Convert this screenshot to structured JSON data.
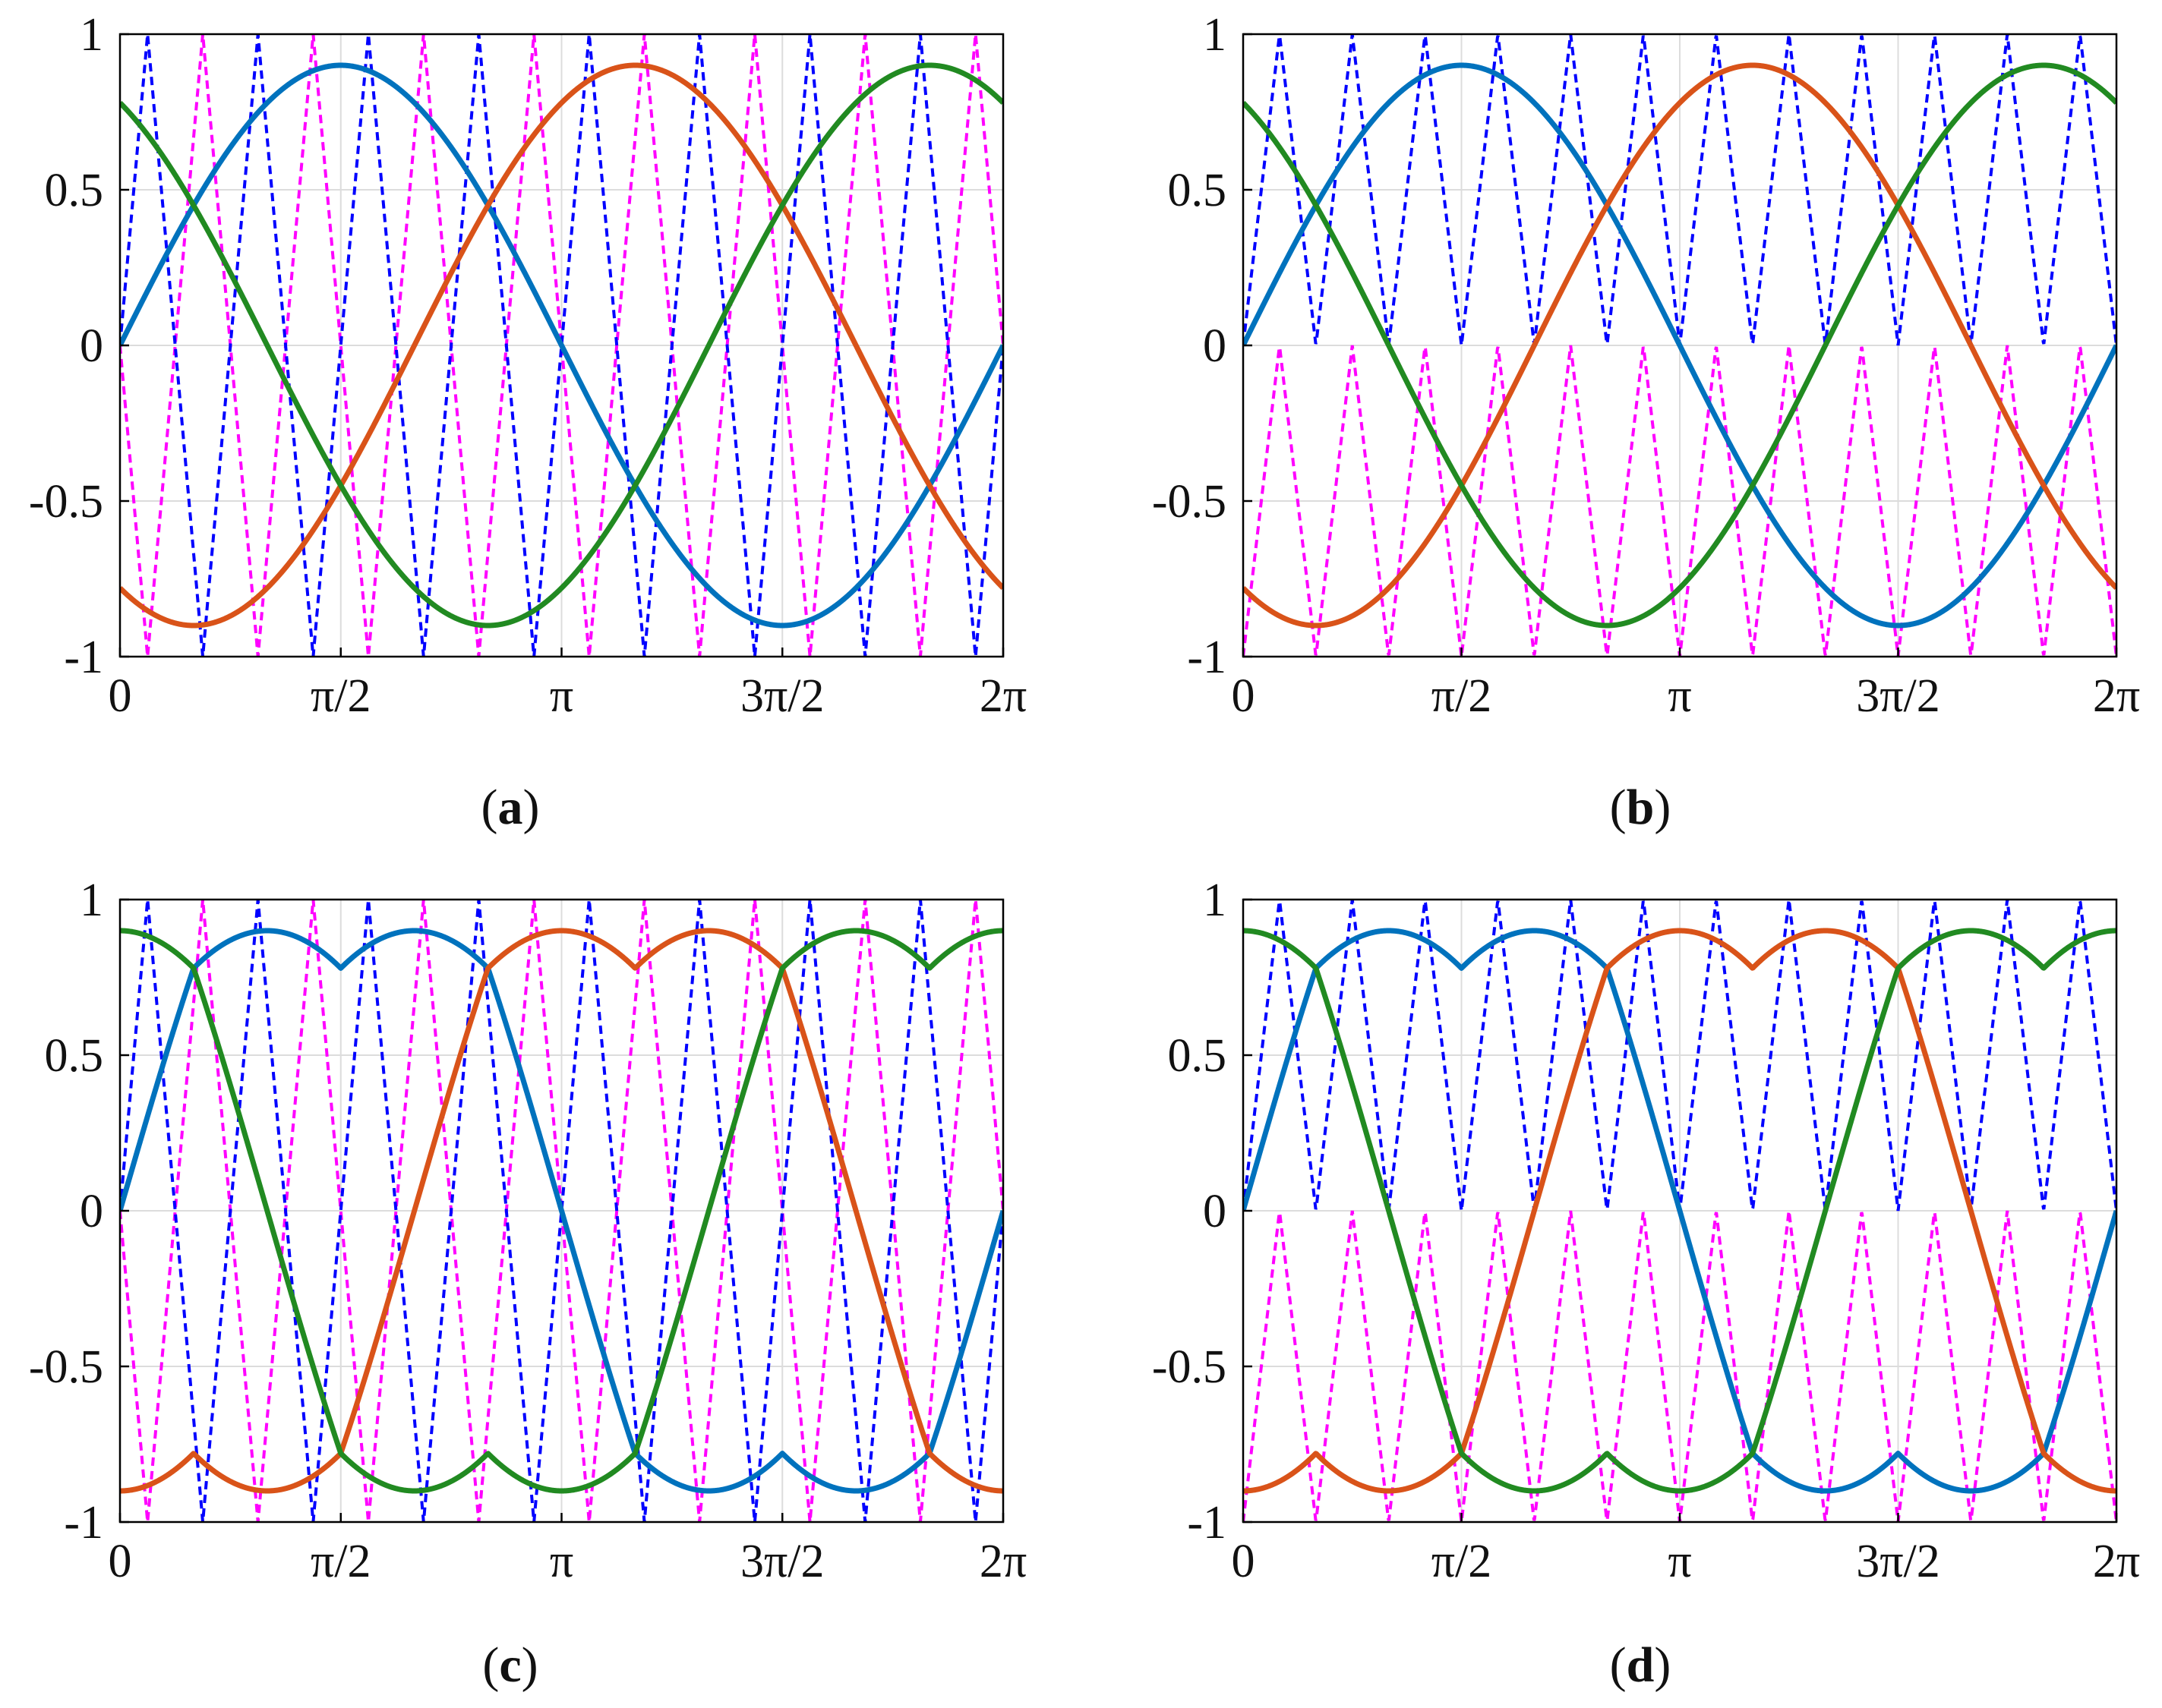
{
  "figure": {
    "x_ticks": [
      {
        "value": 0,
        "label": "0"
      },
      {
        "value": 1.5707963,
        "label": "π/2"
      },
      {
        "value": 3.1415927,
        "label": "π"
      },
      {
        "value": 4.712389,
        "label": "3π/2"
      },
      {
        "value": 6.2831853,
        "label": "2π"
      }
    ],
    "y_ticks": [
      {
        "value": 1,
        "label": "1"
      },
      {
        "value": 0.5,
        "label": "0.5"
      },
      {
        "value": 0,
        "label": "0"
      },
      {
        "value": -0.5,
        "label": "-0.5"
      },
      {
        "value": -1,
        "label": "-1"
      }
    ],
    "colors": {
      "phase_a": "#0072BD",
      "phase_b": "#D95319",
      "phase_c": "#218A21",
      "carrier_upper": "#0000FF",
      "carrier_lower": "#FF00FF",
      "grid": "#DCDCDC",
      "axes": "#000000"
    }
  },
  "chart_data": [
    {
      "type": "line",
      "panel": "a",
      "caption_open": "(",
      "caption_letter": "a",
      "caption_close": ")",
      "xlim": [
        0,
        6.2831853
      ],
      "ylim": [
        -1,
        1
      ],
      "grid": true,
      "modulation": "sinusoidal",
      "carrier": "phase-disposition",
      "amplitude": 0.9,
      "carrier_periods": 8,
      "series": [
        {
          "key": "phase_a",
          "style": "solid",
          "phase_shift_deg": 0
        },
        {
          "key": "phase_b",
          "style": "solid",
          "phase_shift_deg": -120
        },
        {
          "key": "phase_c",
          "style": "solid",
          "phase_shift_deg": 120
        },
        {
          "key": "carrier_upper",
          "style": "dashed"
        },
        {
          "key": "carrier_lower",
          "style": "dashed"
        }
      ]
    },
    {
      "type": "line",
      "panel": "b",
      "caption_open": "(",
      "caption_letter": "b",
      "caption_close": ")",
      "xlim": [
        0,
        6.2831853
      ],
      "ylim": [
        -1,
        1
      ],
      "grid": true,
      "modulation": "sinusoidal",
      "carrier": "level-shifted",
      "amplitude": 0.9,
      "carrier_periods": 12,
      "series": [
        {
          "key": "phase_a",
          "style": "solid",
          "phase_shift_deg": 0
        },
        {
          "key": "phase_b",
          "style": "solid",
          "phase_shift_deg": -120
        },
        {
          "key": "phase_c",
          "style": "solid",
          "phase_shift_deg": 120
        },
        {
          "key": "carrier_upper",
          "style": "dashed"
        },
        {
          "key": "carrier_lower",
          "style": "dashed"
        }
      ]
    },
    {
      "type": "line",
      "panel": "c",
      "caption_open": "(",
      "caption_letter": "c",
      "caption_close": ")",
      "xlim": [
        0,
        6.2831853
      ],
      "ylim": [
        -1,
        1
      ],
      "grid": true,
      "modulation": "space-vector",
      "carrier": "phase-disposition",
      "amplitude": 0.9,
      "carrier_periods": 8,
      "series": [
        {
          "key": "phase_a",
          "style": "solid",
          "phase_shift_deg": 0
        },
        {
          "key": "phase_b",
          "style": "solid",
          "phase_shift_deg": -120
        },
        {
          "key": "phase_c",
          "style": "solid",
          "phase_shift_deg": 120
        },
        {
          "key": "carrier_upper",
          "style": "dashed"
        },
        {
          "key": "carrier_lower",
          "style": "dashed"
        }
      ]
    },
    {
      "type": "line",
      "panel": "d",
      "caption_open": "(",
      "caption_letter": "d",
      "caption_close": ")",
      "xlim": [
        0,
        6.2831853
      ],
      "ylim": [
        -1,
        1
      ],
      "grid": true,
      "modulation": "space-vector",
      "carrier": "level-shifted",
      "amplitude": 0.9,
      "carrier_periods": 12,
      "series": [
        {
          "key": "phase_a",
          "style": "solid",
          "phase_shift_deg": 0
        },
        {
          "key": "phase_b",
          "style": "solid",
          "phase_shift_deg": -120
        },
        {
          "key": "phase_c",
          "style": "solid",
          "phase_shift_deg": 120
        },
        {
          "key": "carrier_upper",
          "style": "dashed"
        },
        {
          "key": "carrier_lower",
          "style": "dashed"
        }
      ]
    }
  ]
}
